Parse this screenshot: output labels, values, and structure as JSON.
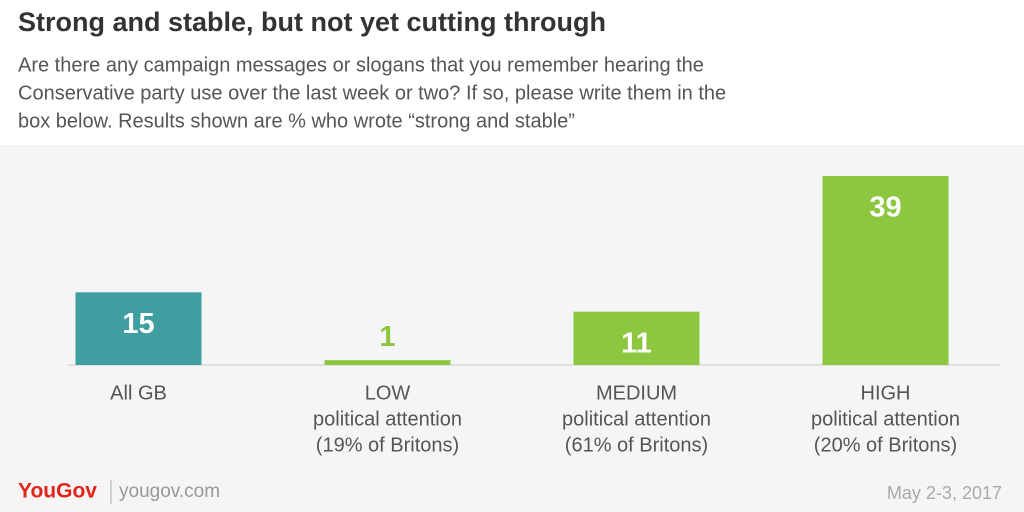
{
  "chart_data": {
    "type": "bar",
    "title": "Strong and stable, but not yet cutting through",
    "subtitle": [
      "Are there any campaign messages or slogans that you remember hearing the",
      "Conservative party use over the last week or two? If so, please write them in the",
      "box below. Results shown are % who wrote “strong and stable”"
    ],
    "categories": [
      [
        "All GB"
      ],
      [
        "LOW",
        "political attention",
        "(19% of Britons)"
      ],
      [
        "MEDIUM",
        "political attention",
        "(61% of Britons)"
      ],
      [
        "HIGH",
        "political attention",
        "(20% of Britons)"
      ]
    ],
    "values": [
      15,
      1,
      11,
      39
    ],
    "colors": [
      "#3f9ea0",
      "#8dc63f",
      "#8dc63f",
      "#8dc63f"
    ],
    "brand": "YouGov",
    "website": "yougov.com",
    "date": "May 2-3, 2017"
  }
}
